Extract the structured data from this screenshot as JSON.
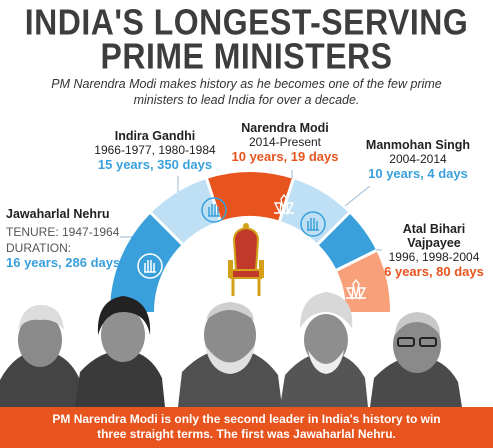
{
  "title": {
    "line1": "INDIA'S LONGEST-SERVING",
    "line2": "PRIME MINISTERS"
  },
  "subtitle": "PM Narendra Modi makes history as he becomes one of the few prime ministers to lead India for over a decade.",
  "leaders": {
    "indira": {
      "name": "Indira Gandhi",
      "years": "1966-1977, 1980-1984",
      "duration": "15 years, 350 days"
    },
    "modi": {
      "name": "Narendra Modi",
      "years": "2014-Present",
      "duration": "10 years, 19 days"
    },
    "manmohan": {
      "name": "Manmohan Singh",
      "years": "2004-2014",
      "duration": "10 years, 4 days"
    },
    "nehru": {
      "name": "Jawaharlal Nehru",
      "tenure_label": "TENURE: 1947-1964",
      "duration_label": "DURATION:",
      "duration": "16 years, 286 days"
    },
    "vajpayee": {
      "name_line1": "Atal Bihari",
      "name_line2": "Vajpayee",
      "years": "1996, 1998-2004",
      "duration": "6 years, 80 days"
    }
  },
  "banner": {
    "line1": "PM Narendra Modi is only the second leader in India's history to win",
    "line2": "three straight terms. The first was Jawaharlal Nehru."
  },
  "colors": {
    "blue": "#3aa0dc",
    "light_blue": "#bfe0f4",
    "orange": "#e8541e",
    "light_orange": "#f7a07a",
    "title": "#3d3d3d"
  },
  "icons": [
    "hand-symbol-icon",
    "lotus-symbol-icon",
    "throne-chair-icon"
  ]
}
